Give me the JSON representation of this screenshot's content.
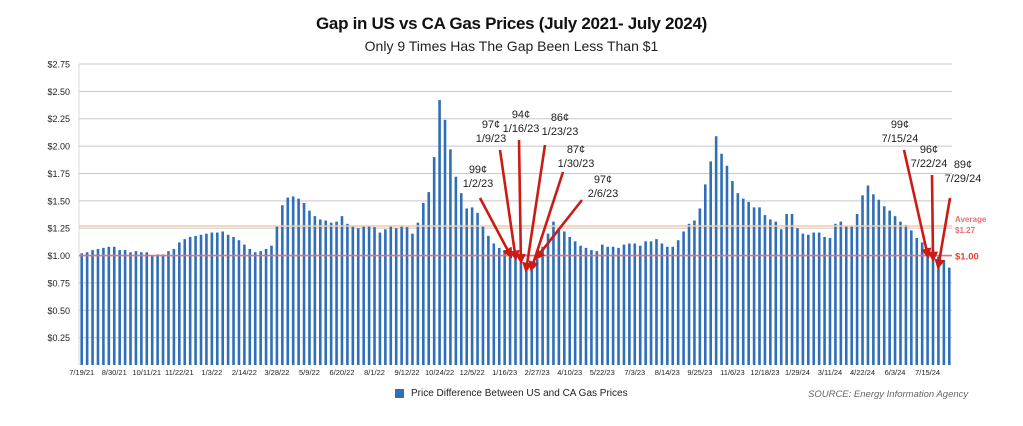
{
  "chart_data": {
    "type": "bar",
    "title": "Gap in US vs CA Gas Prices (July 2021- July 2024)",
    "subtitle": "Only 9 Times Has The Gap Been Less Than $1",
    "xlabel": "",
    "ylabel": "",
    "ylim": [
      0,
      2.75
    ],
    "yticks": [
      0.25,
      0.5,
      0.75,
      1.0,
      1.25,
      1.5,
      1.75,
      2.0,
      2.25,
      2.5,
      2.75
    ],
    "ytick_labels": [
      "$0.25",
      "$0.50",
      "$0.75",
      "$1.00",
      "$1.25",
      "$1.50",
      "$1.75",
      "$2.00",
      "$2.25",
      "$2.50",
      "$2.75"
    ],
    "grid": true,
    "x_start": "7/19/21",
    "x_interval": "weekly",
    "xtick_every": 6,
    "xtick_labels": [
      "7/19/21",
      "8/30/21",
      "10/11/21",
      "11/22/21",
      "1/3/22",
      "2/14/22",
      "3/28/22",
      "5/9/22",
      "6/20/22",
      "8/1/22",
      "9/12/22",
      "10/24/22",
      "12/5/22",
      "1/16/23",
      "2/27/23",
      "4/10/23",
      "5/22/23",
      "7/3/23",
      "8/14/23",
      "9/25/23",
      "11/6/23",
      "12/18/23",
      "1/29/24",
      "3/11/24",
      "4/22/24",
      "6/3/24",
      "7/15/24"
    ],
    "series": [
      {
        "name": "Price Difference Between US and CA Gas Prices",
        "color": "#2f6fb9",
        "values": [
          1.02,
          1.03,
          1.05,
          1.06,
          1.07,
          1.08,
          1.08,
          1.05,
          1.05,
          1.03,
          1.04,
          1.03,
          1.03,
          1.0,
          1.01,
          1.01,
          1.04,
          1.06,
          1.12,
          1.15,
          1.17,
          1.18,
          1.19,
          1.2,
          1.21,
          1.21,
          1.22,
          1.19,
          1.17,
          1.14,
          1.1,
          1.06,
          1.03,
          1.04,
          1.06,
          1.09,
          1.27,
          1.46,
          1.53,
          1.54,
          1.52,
          1.48,
          1.41,
          1.36,
          1.33,
          1.32,
          1.3,
          1.31,
          1.36,
          1.29,
          1.27,
          1.25,
          1.27,
          1.27,
          1.26,
          1.21,
          1.24,
          1.27,
          1.25,
          1.27,
          1.26,
          1.2,
          1.3,
          1.48,
          1.58,
          1.9,
          2.42,
          2.24,
          1.97,
          1.72,
          1.57,
          1.43,
          1.44,
          1.39,
          1.27,
          1.18,
          1.11,
          1.07,
          1.05,
          0.99,
          0.97,
          0.94,
          0.86,
          0.87,
          0.97,
          1.08,
          1.2,
          1.31,
          1.25,
          1.22,
          1.17,
          1.13,
          1.09,
          1.07,
          1.05,
          1.04,
          1.1,
          1.08,
          1.08,
          1.07,
          1.1,
          1.11,
          1.11,
          1.09,
          1.13,
          1.13,
          1.15,
          1.11,
          1.08,
          1.08,
          1.14,
          1.22,
          1.29,
          1.32,
          1.43,
          1.65,
          1.86,
          2.09,
          1.93,
          1.82,
          1.68,
          1.57,
          1.52,
          1.49,
          1.44,
          1.44,
          1.37,
          1.33,
          1.31,
          1.24,
          1.38,
          1.38,
          1.25,
          1.2,
          1.19,
          1.21,
          1.21,
          1.17,
          1.16,
          1.29,
          1.31,
          1.27,
          1.27,
          1.38,
          1.55,
          1.64,
          1.56,
          1.51,
          1.45,
          1.41,
          1.36,
          1.31,
          1.28,
          1.23,
          1.16,
          1.12,
          1.07,
          1.05,
          0.99,
          0.96,
          0.89
        ]
      }
    ],
    "reference_lines": [
      {
        "label": "Average",
        "value_label": "$1.27",
        "value": 1.27,
        "color": "#f5c9a8"
      },
      {
        "label": "$1.00",
        "value": 1.0,
        "color": "#e8706f"
      }
    ],
    "annotations": [
      {
        "cents": "99¢",
        "date": "1/2/23",
        "value": 0.99
      },
      {
        "cents": "97¢",
        "date": "1/9/23",
        "value": 0.97
      },
      {
        "cents": "94¢",
        "date": "1/16/23",
        "value": 0.94
      },
      {
        "cents": "86¢",
        "date": "1/23/23",
        "value": 0.86
      },
      {
        "cents": "87¢",
        "date": "1/30/23",
        "value": 0.87
      },
      {
        "cents": "97¢",
        "date": "2/6/23",
        "value": 0.97
      },
      {
        "cents": "99¢",
        "date": "7/15/24",
        "value": 0.99
      },
      {
        "cents": "96¢",
        "date": "7/22/24",
        "value": 0.96
      },
      {
        "cents": "89¢",
        "date": "7/29/24",
        "value": 0.89
      }
    ],
    "legend": {
      "position": "bottom-center",
      "label": "Price Difference Between US and CA Gas Prices"
    },
    "source": "SOURCE: Energy Information Agency",
    "accent_color": "#cc1a14"
  }
}
